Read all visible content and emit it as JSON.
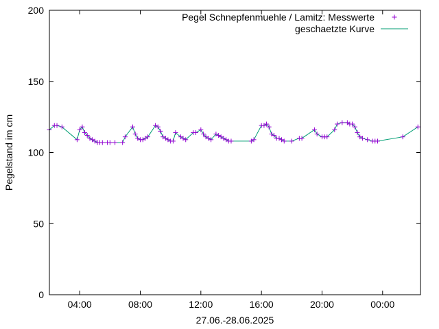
{
  "chart_data": {
    "type": "scatter",
    "title": "",
    "xlabel": "27.06.-28.06.2025",
    "ylabel": "Pegelstand im cm",
    "x_unit": "hours since 27.06.2025 00:00",
    "xlim": [
      2.0,
      26.5
    ],
    "ylim": [
      0,
      200
    ],
    "x_ticks": [
      {
        "value": 4,
        "label": "04:00"
      },
      {
        "value": 8,
        "label": "08:00"
      },
      {
        "value": 12,
        "label": "12:00"
      },
      {
        "value": 16,
        "label": "16:00"
      },
      {
        "value": 20,
        "label": "20:00"
      },
      {
        "value": 24,
        "label": "00:00"
      }
    ],
    "y_ticks": [
      {
        "value": 0,
        "label": "0"
      },
      {
        "value": 50,
        "label": "50"
      },
      {
        "value": 100,
        "label": "100"
      },
      {
        "value": 150,
        "label": "150"
      },
      {
        "value": 200,
        "label": "200"
      }
    ],
    "grid": false,
    "legend": {
      "position": "top-right"
    },
    "series": [
      {
        "name": "Pegel Schnepfenmuehle / Lamitz: Messwerte",
        "style": "points",
        "marker": "+",
        "color": "#9400d3",
        "x": [
          2.0,
          2.33,
          2.5,
          2.83,
          3.83,
          4.0,
          4.17,
          4.33,
          4.5,
          4.67,
          4.83,
          5.0,
          5.17,
          5.33,
          5.5,
          5.83,
          6.0,
          6.33,
          6.83,
          7.0,
          7.5,
          7.67,
          7.83,
          8.0,
          8.17,
          8.33,
          8.5,
          9.0,
          9.17,
          9.33,
          9.5,
          9.67,
          9.83,
          10.0,
          10.17,
          10.33,
          10.67,
          10.83,
          11.0,
          11.5,
          11.67,
          12.0,
          12.17,
          12.33,
          12.5,
          12.67,
          13.0,
          13.17,
          13.33,
          13.5,
          13.67,
          13.83,
          14.0,
          15.33,
          15.5,
          16.0,
          16.17,
          16.33,
          16.5,
          16.67,
          16.83,
          17.0,
          17.17,
          17.33,
          17.5,
          18.0,
          18.5,
          18.67,
          19.5,
          19.67,
          20.0,
          20.17,
          20.33,
          20.83,
          21.0,
          21.33,
          21.67,
          21.83,
          22.0,
          22.17,
          22.33,
          22.5,
          22.67,
          23.0,
          23.33,
          23.5,
          23.67,
          25.33,
          26.33
        ],
        "y": [
          116,
          119,
          119,
          118,
          109,
          116,
          118,
          114,
          112,
          110,
          109,
          108,
          107,
          107,
          107,
          107,
          107,
          107,
          107,
          111,
          118,
          113,
          110,
          109,
          109,
          110,
          111,
          119,
          118,
          115,
          111,
          110,
          109,
          108,
          108,
          114,
          111,
          110,
          109,
          114,
          114,
          116,
          113,
          111,
          110,
          109,
          113,
          112,
          111,
          110,
          109,
          108,
          108,
          108,
          109,
          119,
          119,
          120,
          118,
          113,
          112,
          110,
          110,
          109,
          108,
          108,
          110,
          110,
          116,
          113,
          111,
          111,
          111,
          116,
          120,
          121,
          121,
          120,
          120,
          118,
          114,
          111,
          110,
          109,
          108,
          108,
          108,
          111,
          118
        ]
      },
      {
        "name": "geschaetzte Kurve",
        "style": "line",
        "color": "#009e73"
      }
    ]
  }
}
